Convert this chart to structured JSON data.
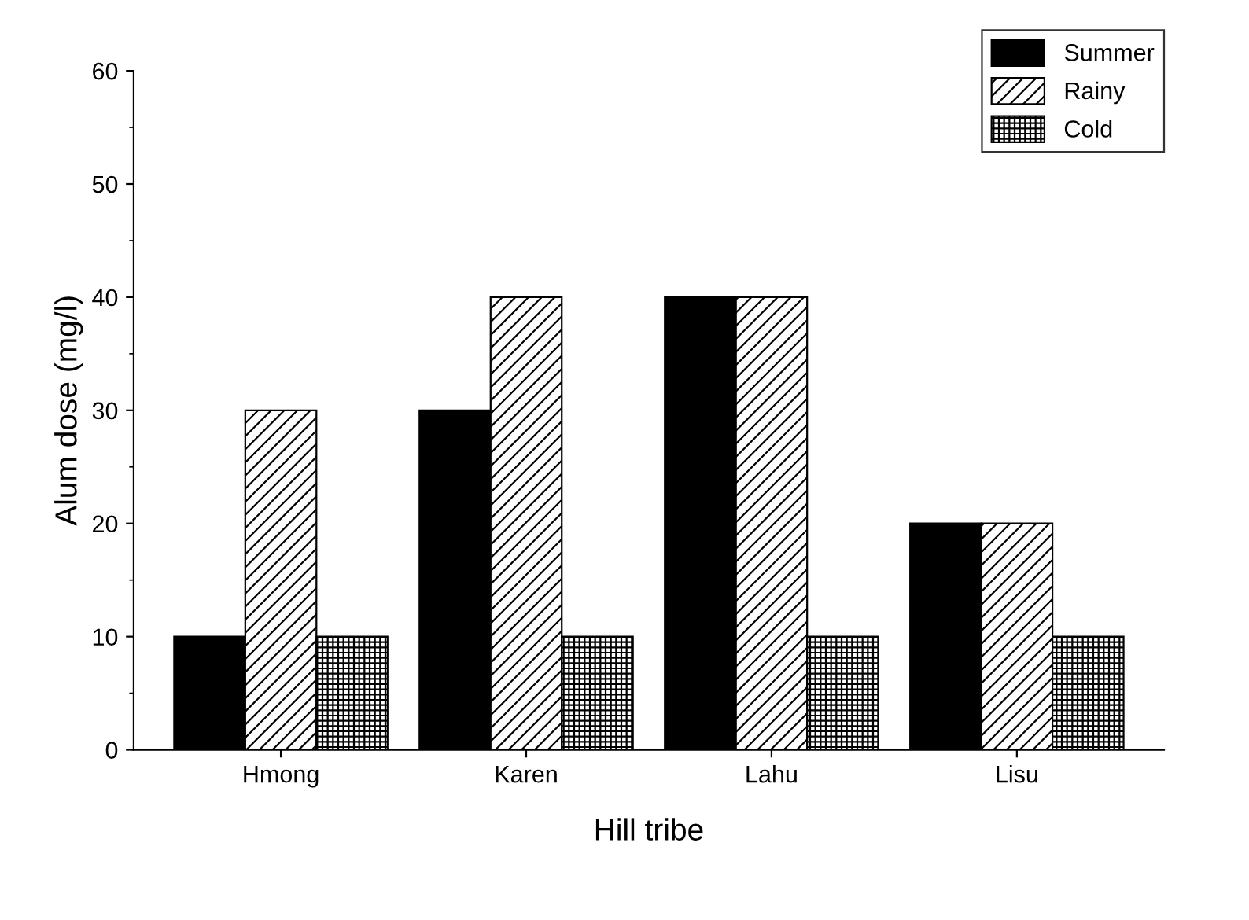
{
  "chart_data": {
    "type": "bar",
    "xlabel": "Hill tribe",
    "ylabel": "Alum dose (mg/l)",
    "categories": [
      "Hmong",
      "Karen",
      "Lahu",
      "Lisu"
    ],
    "series": [
      {
        "name": "Summer",
        "color": "#000000",
        "values": [
          10,
          30,
          40,
          20
        ]
      },
      {
        "name": "Rainy",
        "color": "#000000",
        "values": [
          30,
          40,
          40,
          20
        ]
      },
      {
        "name": "Cold",
        "color": "#000000",
        "values": [
          10,
          10,
          10,
          10
        ]
      }
    ],
    "ylim": [
      0,
      60
    ],
    "yticks": [
      0,
      10,
      20,
      30,
      40,
      50,
      60
    ],
    "grid": false,
    "legend": "top right"
  }
}
